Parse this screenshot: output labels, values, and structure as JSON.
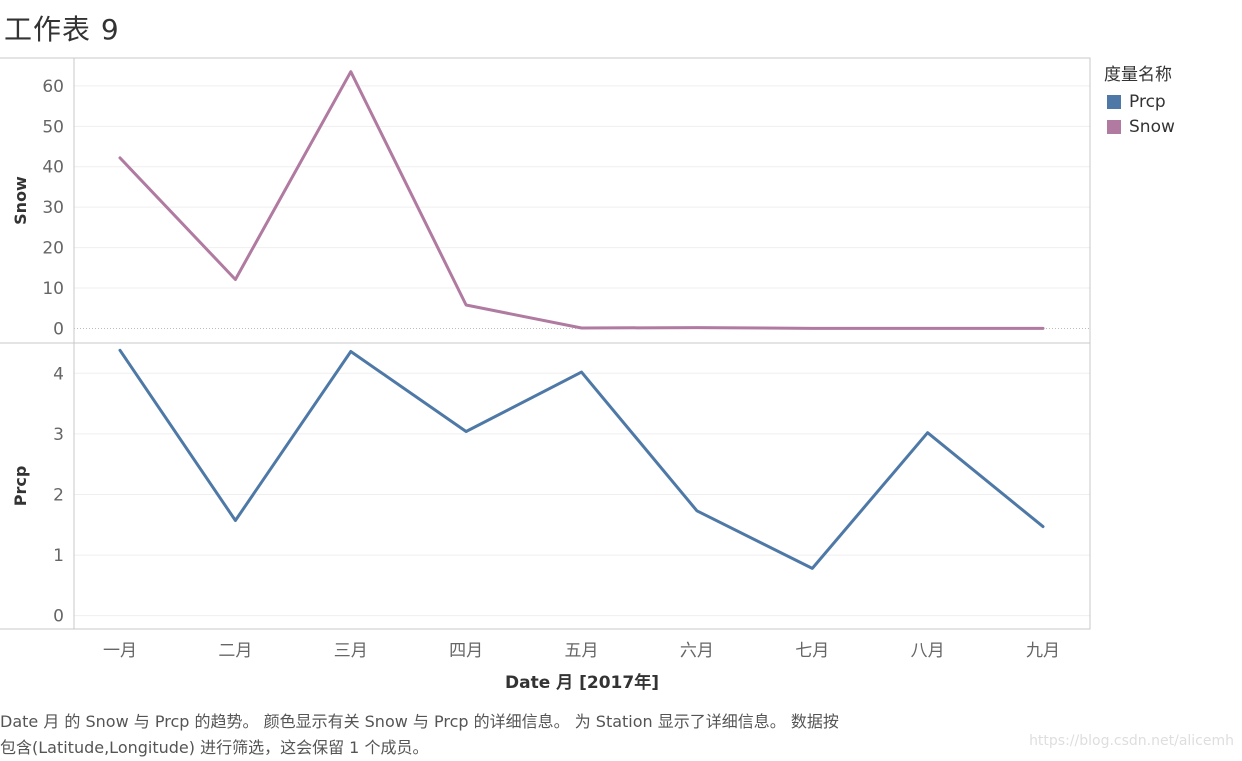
{
  "page": {
    "title": "工作表 9",
    "caption_line1": "Date 月 的 Snow 与 Prcp 的趋势。 颜色显示有关 Snow 与 Prcp 的详细信息。 为 Station 显示了详细信息。 数据按",
    "caption_line2": "包含(Latitude,Longitude) 进行筛选，这会保留 1 个成员。",
    "watermark": "https://blog.csdn.net/alicemh"
  },
  "legend": {
    "title": "度量名称",
    "items": [
      {
        "label": "Prcp",
        "color": "#4e79a7"
      },
      {
        "label": "Snow",
        "color": "#b07aa1"
      }
    ]
  },
  "chart_data": {
    "type": "line",
    "categories": [
      "一月",
      "二月",
      "三月",
      "四月",
      "五月",
      "六月",
      "七月",
      "八月",
      "九月"
    ],
    "xlabel": "Date 月 [2017年]",
    "panels": [
      {
        "measure": "Snow",
        "ylabel": "Snow",
        "color": "#b07aa1",
        "yticks": [
          0,
          10,
          20,
          30,
          40,
          50,
          60
        ],
        "ylim": [
          -3.6,
          66.9
        ],
        "values": [
          42.2,
          12.1,
          63.5,
          5.8,
          0.1,
          0.2,
          0.0,
          0.0,
          0.0
        ]
      },
      {
        "measure": "Prcp",
        "ylabel": "Prcp",
        "color": "#4e79a7",
        "yticks": [
          0,
          1,
          2,
          3,
          4
        ],
        "ylim": [
          -0.22,
          4.5
        ],
        "values": [
          4.38,
          1.57,
          4.36,
          3.04,
          4.02,
          1.73,
          0.78,
          3.02,
          1.47
        ]
      }
    ]
  }
}
